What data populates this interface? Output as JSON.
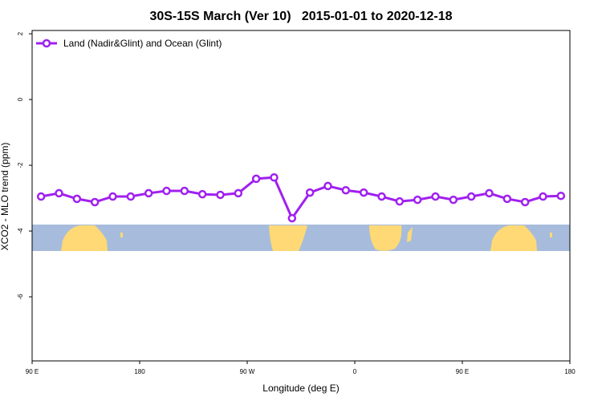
{
  "chart_data": {
    "type": "line",
    "title": "30S-15S March (Ver 10)   2015-01-01 to 2020-12-18",
    "x_label": "Longitude (deg E)",
    "y_label": "XCO2 - MLO trend (ppm)",
    "x": [
      97.5,
      112.5,
      127.5,
      142.5,
      157.5,
      172.5,
      187.5,
      202.5,
      217.5,
      232.5,
      247.5,
      262.5,
      277.5,
      292.5,
      307.5,
      322.5,
      337.5,
      352.5,
      367.5,
      382.5,
      397.5,
      412.5,
      427.5,
      442.5,
      457.5,
      472.5,
      487.5,
      502.5,
      517.5,
      532.5
    ],
    "series": [
      {
        "name": "Land (Nadir&Glint) and Ocean (Glint)",
        "color": "#a020f0",
        "values": [
          -2.95,
          -2.85,
          -3.02,
          -3.12,
          -2.95,
          -2.95,
          -2.85,
          -2.78,
          -2.78,
          -2.88,
          -2.9,
          -2.85,
          -2.41,
          -2.37,
          -3.61,
          -2.83,
          -2.63,
          -2.76,
          -2.83,
          -2.95,
          -3.1,
          -3.05,
          -2.95,
          -3.05,
          -2.95,
          -2.85,
          -3.02,
          -3.12,
          -2.95,
          -2.93
        ]
      }
    ],
    "xlim": [
      90,
      540
    ],
    "xticks": [
      {
        "value": 90,
        "label": "90 E"
      },
      180,
      {
        "value": 270,
        "label": "90 W"
      },
      {
        "value": 360,
        "label": "0"
      },
      {
        "value": 450,
        "label": "90 E"
      },
      {
        "value": 540,
        "label": "180"
      }
    ],
    "ylim": [
      -7.95,
      2.1
    ],
    "yticks": [
      2,
      0,
      -2,
      -4,
      -6
    ],
    "legend": "top-left"
  }
}
